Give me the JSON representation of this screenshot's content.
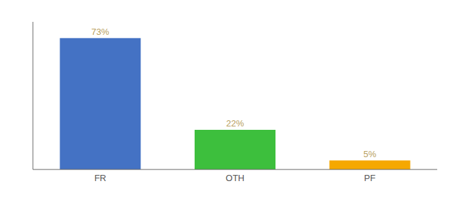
{
  "chart_data": {
    "type": "bar",
    "categories": [
      "FR",
      "OTH",
      "PF"
    ],
    "values": [
      73,
      22,
      5
    ],
    "value_labels": [
      "73%",
      "22%",
      "5%"
    ],
    "colors": [
      "#4472c4",
      "#3dbf3d",
      "#f5a800"
    ],
    "ylim": [
      0,
      82
    ],
    "data_labels": true,
    "tick_labels": "x",
    "grid": false
  }
}
